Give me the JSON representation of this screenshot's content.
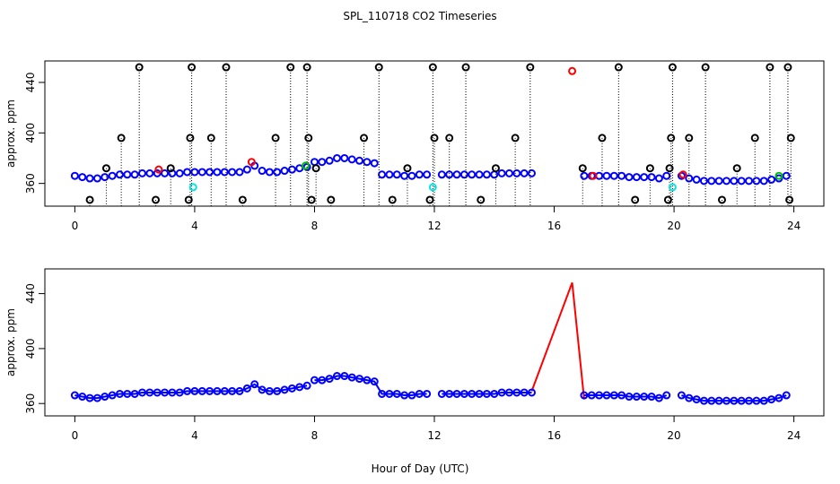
{
  "chart_data": [
    {
      "type": "scatter",
      "title": "SPL_110718  CO2 Timeseries",
      "ylabel": "approx. ppm",
      "xlim": [
        -1,
        25
      ],
      "ylim": [
        342,
        457
      ],
      "xticks": [
        0,
        4,
        8,
        12,
        16,
        20,
        24
      ],
      "yticks": [
        360,
        400,
        440
      ],
      "series": [
        {
          "color": "#0000ff",
          "markers": true,
          "x": [
            0,
            0.25,
            0.5,
            0.75,
            1,
            1.25,
            1.5,
            1.75,
            2,
            2.25,
            2.5,
            2.75,
            3,
            3.25,
            3.5,
            3.75,
            4,
            4.25,
            4.5,
            4.75,
            5,
            5.25,
            5.5,
            5.75,
            6,
            6.25,
            6.5,
            6.75,
            7,
            7.25,
            7.5,
            7.75,
            7.9,
            8,
            8.25,
            8.5,
            8.75,
            9,
            9.25,
            9.5,
            9.75,
            10,
            10.25,
            10.5,
            10.75,
            11,
            11.25,
            11.5,
            11.75,
            12,
            12.25,
            12.5,
            12.75,
            13,
            13.25,
            13.5,
            13.75,
            14,
            14.25,
            14.5,
            14.75,
            15,
            15.25,
            16,
            17,
            17.25,
            17.5,
            17.75,
            18,
            18.25,
            18.5,
            18.75,
            19,
            19.25,
            19.5,
            19.75,
            19.9,
            20.25,
            20.5,
            20.75,
            21,
            21.25,
            21.5,
            21.75,
            22,
            22.25,
            22.5,
            22.75,
            23,
            23.25,
            23.5,
            23.75
          ],
          "values": [
            366,
            365,
            364,
            364,
            365,
            366,
            367,
            367,
            367,
            368,
            368,
            368,
            368,
            368,
            368,
            369,
            369,
            369,
            369,
            369,
            369,
            369,
            369,
            371,
            374,
            370,
            369,
            369,
            370,
            371,
            372,
            373,
            null,
            377,
            377,
            378,
            380,
            380,
            379,
            378,
            377,
            376,
            367,
            367,
            367,
            366,
            366,
            367,
            367,
            null,
            367,
            367,
            367,
            367,
            367,
            367,
            367,
            367,
            368,
            368,
            368,
            368,
            368,
            null,
            366,
            366,
            366,
            366,
            366,
            366,
            365,
            365,
            365,
            365,
            364,
            366,
            null,
            366,
            364,
            363,
            362,
            362,
            362,
            362,
            362,
            362,
            362,
            362,
            362,
            363,
            364,
            366
          ]
        },
        {
          "color": "#000000",
          "markers": true,
          "drop_lines": true,
          "x": [
            2.15,
            3.9,
            5.05,
            7.2,
            7.75,
            10.15,
            11.95,
            13.05,
            15.2,
            18.15,
            19.95,
            21.05,
            23.2,
            23.8,
            0.5,
            2.7,
            3.8,
            5.6,
            7.9,
            8.55,
            10.6,
            11.85,
            13.55,
            18.7,
            19.8,
            21.6,
            23.85,
            1.55,
            3.85,
            4.55,
            6.7,
            7.8,
            9.65,
            12.0,
            12.5,
            14.7,
            17.6,
            19.9,
            20.5,
            22.7,
            23.9,
            1.05,
            3.2,
            8.05,
            11.1,
            14.05,
            16.95,
            19.2,
            19.85,
            22.1
          ],
          "values": [
            452,
            452,
            452,
            452,
            452,
            452,
            452,
            452,
            452,
            452,
            452,
            452,
            452,
            452,
            347,
            347,
            347,
            347,
            347,
            347,
            347,
            347,
            347,
            347,
            347,
            347,
            347,
            396,
            396,
            396,
            396,
            396,
            396,
            396,
            396,
            396,
            396,
            396,
            396,
            396,
            396,
            372,
            372,
            372,
            372,
            372,
            372,
            372,
            372,
            372
          ]
        },
        {
          "color": "#ff0000",
          "markers": true,
          "x": [
            2.8,
            5.9,
            16.6,
            17.3,
            20.3
          ],
          "values": [
            371,
            377,
            449,
            366,
            367
          ]
        },
        {
          "color": "#00c000",
          "markers": true,
          "x": [
            7.7,
            23.5
          ],
          "values": [
            374,
            366
          ]
        },
        {
          "color": "#00e5e5",
          "markers": true,
          "x": [
            3.95,
            11.95,
            19.95
          ],
          "values": [
            357,
            357,
            357
          ]
        }
      ]
    },
    {
      "type": "line",
      "ylabel": "approx. ppm",
      "xlabel": "Hour of Day (UTC)",
      "xlim": [
        -1,
        25
      ],
      "ylim": [
        351,
        458
      ],
      "xticks": [
        0,
        4,
        8,
        12,
        16,
        20,
        24
      ],
      "yticks": [
        360,
        400,
        440
      ],
      "series": [
        {
          "color": "#ff0000",
          "markers": false,
          "x": [
            15.25,
            16.6,
            17.0
          ],
          "values": [
            369,
            448,
            363
          ]
        },
        {
          "color": "#0000ff",
          "markers": true,
          "x": [
            0,
            0.25,
            0.5,
            0.75,
            1,
            1.25,
            1.5,
            1.75,
            2,
            2.25,
            2.5,
            2.75,
            3,
            3.25,
            3.5,
            3.75,
            4,
            4.25,
            4.5,
            4.75,
            5,
            5.25,
            5.5,
            5.75,
            6,
            6.25,
            6.5,
            6.75,
            7,
            7.25,
            7.5,
            7.75,
            7.9,
            8,
            8.25,
            8.5,
            8.75,
            9,
            9.25,
            9.5,
            9.75,
            10,
            10.25,
            10.5,
            10.75,
            11,
            11.25,
            11.5,
            11.75,
            12,
            12.25,
            12.5,
            12.75,
            13,
            13.25,
            13.5,
            13.75,
            14,
            14.25,
            14.5,
            14.75,
            15,
            15.25,
            16,
            17,
            17.25,
            17.5,
            17.75,
            18,
            18.25,
            18.5,
            18.75,
            19,
            19.25,
            19.5,
            19.75,
            19.9,
            20.25,
            20.5,
            20.75,
            21,
            21.25,
            21.5,
            21.75,
            22,
            22.25,
            22.5,
            22.75,
            23,
            23.25,
            23.5,
            23.75
          ],
          "values": [
            366,
            365,
            364,
            364,
            365,
            366,
            367,
            367,
            367,
            368,
            368,
            368,
            368,
            368,
            368,
            369,
            369,
            369,
            369,
            369,
            369,
            369,
            369,
            371,
            374,
            370,
            369,
            369,
            370,
            371,
            372,
            373,
            null,
            377,
            377,
            378,
            380,
            380,
            379,
            378,
            377,
            376,
            367,
            367,
            367,
            366,
            366,
            367,
            367,
            null,
            367,
            367,
            367,
            367,
            367,
            367,
            367,
            367,
            368,
            368,
            368,
            368,
            368,
            null,
            366,
            366,
            366,
            366,
            366,
            366,
            365,
            365,
            365,
            365,
            364,
            366,
            null,
            366,
            364,
            363,
            362,
            362,
            362,
            362,
            362,
            362,
            362,
            362,
            362,
            363,
            364,
            366
          ]
        }
      ]
    }
  ]
}
